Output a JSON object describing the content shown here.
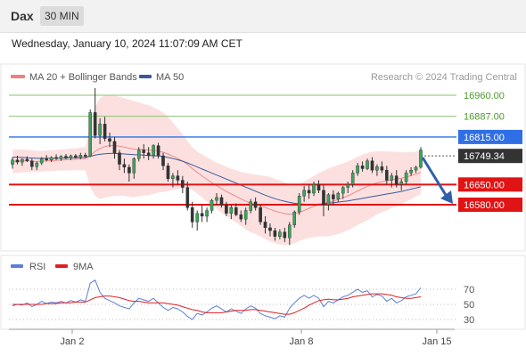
{
  "header": {
    "symbol": "Dax",
    "timeframe": "30 MIN",
    "datetime": "Wednesday, January 10, 2024 11:07:09 AM CET"
  },
  "legend": {
    "bollinger": {
      "label": "MA 20 + Bollinger Bands",
      "color": "#f08080"
    },
    "ma50": {
      "label": "MA 50",
      "color": "#3a5a9a"
    },
    "credit": "Research © 2024 Trading Central"
  },
  "rsi_legend": {
    "rsi": "RSI",
    "ma9": "9MA",
    "rsi_color": "#5b7fd6",
    "ma9_color": "#e02020"
  },
  "levels": [
    {
      "value": "16960.00",
      "kind": "target",
      "color": "#8dc26f"
    },
    {
      "value": "16887.00",
      "kind": "target",
      "color": "#8dc26f"
    },
    {
      "value": "16815.00",
      "kind": "pivot",
      "color": "#2f6fe6"
    },
    {
      "value": "16749.34",
      "kind": "last",
      "color": "#333333"
    },
    {
      "value": "16650.00",
      "kind": "support",
      "color": "#e01414"
    },
    {
      "value": "16580.00",
      "kind": "support",
      "color": "#e01414"
    }
  ],
  "x_labels": [
    "Jan 2",
    "Jan 8",
    "Jan 15"
  ],
  "rsi_ticks": [
    "70",
    "50",
    "30"
  ],
  "arrow_color": "#2f5fa8",
  "chart_data": [
    {
      "type": "candlestick",
      "title": "",
      "ylim": [
        16390,
        17010
      ],
      "levels": [
        16960,
        16887,
        16815,
        16749.34,
        16650,
        16580
      ],
      "last_price": 16749.34,
      "x_ticks": [
        "Jan 2",
        "Jan 8",
        "Jan 15"
      ],
      "ohlc": [
        [
          16720,
          16745,
          16705,
          16735
        ],
        [
          16735,
          16750,
          16720,
          16728
        ],
        [
          16728,
          16740,
          16715,
          16738
        ],
        [
          16738,
          16748,
          16728,
          16732
        ],
        [
          16732,
          16740,
          16700,
          16712
        ],
        [
          16712,
          16730,
          16700,
          16725
        ],
        [
          16725,
          16745,
          16718,
          16740
        ],
        [
          16740,
          16752,
          16730,
          16735
        ],
        [
          16735,
          16748,
          16728,
          16744
        ],
        [
          16744,
          16755,
          16735,
          16740
        ],
        [
          16740,
          16752,
          16732,
          16748
        ],
        [
          16748,
          16756,
          16738,
          16742
        ],
        [
          16742,
          16754,
          16735,
          16750
        ],
        [
          16750,
          16756,
          16740,
          16745
        ],
        [
          16745,
          16760,
          16738,
          16752
        ],
        [
          16752,
          16760,
          16742,
          16748
        ],
        [
          16748,
          16910,
          16745,
          16900
        ],
        [
          16900,
          16985,
          16810,
          16820
        ],
        [
          16820,
          16880,
          16790,
          16860
        ],
        [
          16860,
          16885,
          16800,
          16810
        ],
        [
          16810,
          16830,
          16780,
          16800
        ],
        [
          16800,
          16815,
          16740,
          16760
        ],
        [
          16760,
          16770,
          16700,
          16720
        ],
        [
          16720,
          16740,
          16690,
          16710
        ],
        [
          16710,
          16720,
          16660,
          16690
        ],
        [
          16690,
          16745,
          16670,
          16740
        ],
        [
          16740,
          16780,
          16730,
          16770
        ],
        [
          16770,
          16790,
          16740,
          16760
        ],
        [
          16760,
          16780,
          16735,
          16750
        ],
        [
          16750,
          16790,
          16740,
          16785
        ],
        [
          16785,
          16795,
          16740,
          16750
        ],
        [
          16750,
          16760,
          16700,
          16715
        ],
        [
          16715,
          16725,
          16660,
          16670
        ],
        [
          16670,
          16690,
          16640,
          16680
        ],
        [
          16680,
          16700,
          16650,
          16665
        ],
        [
          16665,
          16680,
          16620,
          16640
        ],
        [
          16640,
          16660,
          16560,
          16570
        ],
        [
          16570,
          16590,
          16500,
          16520
        ],
        [
          16520,
          16560,
          16490,
          16550
        ],
        [
          16550,
          16580,
          16520,
          16540
        ],
        [
          16540,
          16570,
          16520,
          16560
        ],
        [
          16560,
          16600,
          16550,
          16595
        ],
        [
          16595,
          16620,
          16580,
          16605
        ],
        [
          16605,
          16615,
          16570,
          16580
        ],
        [
          16580,
          16590,
          16540,
          16550
        ],
        [
          16550,
          16580,
          16530,
          16570
        ],
        [
          16570,
          16585,
          16540,
          16545
        ],
        [
          16545,
          16560,
          16520,
          16530
        ],
        [
          16530,
          16570,
          16510,
          16560
        ],
        [
          16560,
          16600,
          16550,
          16590
        ],
        [
          16590,
          16605,
          16560,
          16570
        ],
        [
          16570,
          16580,
          16510,
          16520
        ],
        [
          16520,
          16540,
          16480,
          16500
        ],
        [
          16500,
          16515,
          16470,
          16490
        ],
        [
          16490,
          16500,
          16455,
          16470
        ],
        [
          16470,
          16495,
          16460,
          16485
        ],
        [
          16485,
          16500,
          16450,
          16465
        ],
        [
          16465,
          16520,
          16440,
          16510
        ],
        [
          16510,
          16560,
          16500,
          16555
        ],
        [
          16555,
          16620,
          16545,
          16610
        ],
        [
          16610,
          16645,
          16590,
          16630
        ],
        [
          16630,
          16650,
          16600,
          16620
        ],
        [
          16620,
          16660,
          16610,
          16650
        ],
        [
          16650,
          16665,
          16620,
          16630
        ],
        [
          16630,
          16650,
          16540,
          16580
        ],
        [
          16580,
          16620,
          16560,
          16615
        ],
        [
          16615,
          16630,
          16580,
          16600
        ],
        [
          16600,
          16625,
          16590,
          16620
        ],
        [
          16620,
          16645,
          16600,
          16640
        ],
        [
          16640,
          16660,
          16620,
          16650
        ],
        [
          16650,
          16700,
          16640,
          16690
        ],
        [
          16690,
          16725,
          16680,
          16715
        ],
        [
          16715,
          16730,
          16695,
          16705
        ],
        [
          16705,
          16740,
          16700,
          16732
        ],
        [
          16732,
          16745,
          16690,
          16700
        ],
        [
          16700,
          16720,
          16680,
          16712
        ],
        [
          16712,
          16730,
          16690,
          16700
        ],
        [
          16700,
          16715,
          16650,
          16665
        ],
        [
          16665,
          16690,
          16640,
          16680
        ],
        [
          16680,
          16700,
          16640,
          16650
        ],
        [
          16650,
          16670,
          16630,
          16660
        ],
        [
          16660,
          16700,
          16650,
          16690
        ],
        [
          16690,
          16710,
          16680,
          16700
        ],
        [
          16700,
          16715,
          16690,
          16710
        ],
        [
          16710,
          16780,
          16705,
          16770
        ]
      ],
      "ma20": [
        16730,
        16731,
        16732,
        16732,
        16731,
        16730,
        16731,
        16732,
        16733,
        16734,
        16735,
        16736,
        16737,
        16738,
        16739,
        16740,
        16750,
        16765,
        16775,
        16782,
        16785,
        16785,
        16783,
        16780,
        16776,
        16773,
        16772,
        16771,
        16769,
        16768,
        16766,
        16762,
        16756,
        16748,
        16740,
        16732,
        16720,
        16705,
        16692,
        16680,
        16668,
        16656,
        16646,
        16636,
        16626,
        16617,
        16609,
        16600,
        16592,
        16586,
        16581,
        16576,
        16570,
        16564,
        16558,
        16553,
        16549,
        16547,
        16548,
        16553,
        16560,
        16567,
        16574,
        16580,
        16584,
        16588,
        16593,
        16598,
        16604,
        16611,
        16619,
        16628,
        16636,
        16643,
        16650,
        16656,
        16660,
        16663,
        16666,
        16669,
        16672,
        16676,
        16681,
        16686,
        16692
      ],
      "ma50": [
        16745,
        16745,
        16744,
        16743,
        16742,
        16741,
        16741,
        16741,
        16741,
        16741,
        16742,
        16742,
        16743,
        16743,
        16744,
        16745,
        16748,
        16752,
        16755,
        16757,
        16758,
        16758,
        16757,
        16756,
        16755,
        16754,
        16753,
        16752,
        16751,
        16750,
        16749,
        16747,
        16744,
        16740,
        16736,
        16731,
        16725,
        16718,
        16711,
        16704,
        16697,
        16690,
        16683,
        16676,
        16669,
        16662,
        16655,
        16648,
        16641,
        16634,
        16627,
        16620,
        16613,
        16607,
        16601,
        16596,
        16592,
        16588,
        16585,
        16583,
        16582,
        16581,
        16581,
        16582,
        16583,
        16585,
        16587,
        16589,
        16591,
        16593,
        16596,
        16599,
        16602,
        16605,
        16608,
        16611,
        16614,
        16617,
        16620,
        16623,
        16626,
        16630,
        16634,
        16638,
        16642
      ],
      "bb_upper": [
        16770,
        16772,
        16772,
        16771,
        16769,
        16767,
        16767,
        16768,
        16769,
        16770,
        16772,
        16773,
        16775,
        16776,
        16778,
        16780,
        16860,
        16920,
        16950,
        16960,
        16962,
        16960,
        16955,
        16950,
        16945,
        16940,
        16935,
        16930,
        16925,
        16918,
        16910,
        16900,
        16885,
        16865,
        16845,
        16825,
        16800,
        16780,
        16765,
        16755,
        16745,
        16735,
        16726,
        16720,
        16712,
        16705,
        16700,
        16694,
        16690,
        16687,
        16684,
        16682,
        16680,
        16676,
        16670,
        16664,
        16658,
        16652,
        16650,
        16652,
        16660,
        16670,
        16680,
        16690,
        16698,
        16706,
        16712,
        16718,
        16724,
        16730,
        16738,
        16746,
        16754,
        16760,
        16764,
        16766,
        16766,
        16765,
        16764,
        16763,
        16762,
        16762,
        16763,
        16764,
        16768
      ],
      "bb_lower": [
        16690,
        16690,
        16692,
        16693,
        16693,
        16693,
        16695,
        16696,
        16697,
        16698,
        16698,
        16699,
        16699,
        16700,
        16700,
        16700,
        16640,
        16610,
        16600,
        16604,
        16608,
        16610,
        16611,
        16610,
        16607,
        16606,
        16609,
        16612,
        16613,
        16618,
        16622,
        16624,
        16627,
        16631,
        16635,
        16639,
        16640,
        16630,
        16619,
        16605,
        16591,
        16577,
        16566,
        16552,
        16540,
        16529,
        16518,
        16506,
        16494,
        16485,
        16478,
        16470,
        16460,
        16452,
        16446,
        16442,
        16440,
        16442,
        16446,
        16454,
        16460,
        16464,
        16468,
        16470,
        16470,
        16470,
        16474,
        16478,
        16484,
        16492,
        16500,
        16510,
        16518,
        16526,
        16536,
        16546,
        16554,
        16561,
        16568,
        16575,
        16582,
        16590,
        16599,
        16608,
        16616
      ]
    },
    {
      "type": "line",
      "title": "",
      "ylim": [
        15,
        85
      ],
      "yticks": [
        70,
        50,
        30
      ],
      "series": [
        {
          "name": "RSI",
          "values": [
            48,
            50,
            49,
            52,
            47,
            50,
            54,
            51,
            53,
            52,
            54,
            52,
            55,
            53,
            56,
            54,
            78,
            82,
            66,
            58,
            55,
            52,
            48,
            46,
            44,
            52,
            58,
            56,
            54,
            58,
            52,
            46,
            42,
            46,
            44,
            40,
            34,
            30,
            38,
            36,
            40,
            45,
            48,
            44,
            40,
            44,
            41,
            38,
            44,
            48,
            45,
            38,
            35,
            33,
            31,
            35,
            33,
            45,
            52,
            58,
            62,
            58,
            62,
            58,
            47,
            54,
            52,
            56,
            60,
            62,
            66,
            70,
            66,
            68,
            60,
            63,
            61,
            54,
            58,
            52,
            55,
            60,
            62,
            64,
            72
          ]
        },
        {
          "name": "9MA",
          "values": [
            50,
            50,
            50,
            50,
            50,
            50,
            50,
            51,
            51,
            51,
            52,
            52,
            52,
            53,
            53,
            53,
            56,
            59,
            60,
            61,
            61,
            60,
            59,
            57,
            55,
            54,
            54,
            53,
            52,
            52,
            52,
            52,
            51,
            50,
            49,
            47,
            45,
            43,
            42,
            40,
            39,
            39,
            39,
            39,
            40,
            41,
            42,
            42,
            42,
            43,
            43,
            42,
            41,
            40,
            39,
            38,
            37,
            37,
            39,
            42,
            45,
            49,
            52,
            55,
            56,
            57,
            56,
            56,
            57,
            58,
            60,
            61,
            62,
            63,
            64,
            64,
            64,
            63,
            62,
            60,
            59,
            58,
            58,
            59,
            60
          ]
        }
      ]
    }
  ]
}
